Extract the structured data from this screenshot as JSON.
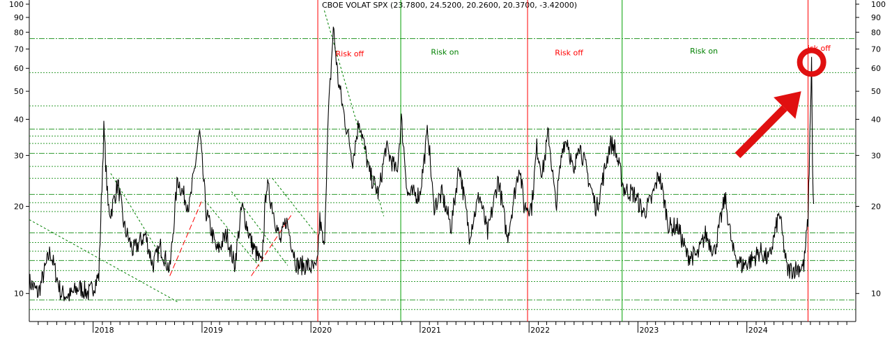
{
  "chart_data": {
    "type": "line",
    "title": "CBOE VOLAT SPX (23.7800, 24.5200, 20.2600, 20.3700, -3.42000)",
    "xlabel": "",
    "ylabel": "",
    "y_scale": "log",
    "ylim": [
      8,
      100
    ],
    "xlim": [
      "2017-06-01",
      "2024-12-31"
    ],
    "grid": true,
    "y_ticks": [
      10,
      20,
      30,
      40,
      50,
      60,
      70,
      80,
      90,
      100
    ],
    "y_tick_labels": [
      "10",
      "20",
      "30",
      "40",
      "50",
      "60",
      "70",
      "80",
      "90",
      "100"
    ],
    "x_ticks": [
      "2018-01-01",
      "2019-01-01",
      "2020-01-01",
      "2021-01-01",
      "2022-01-01",
      "2023-01-01",
      "2024-01-01"
    ],
    "x_tick_labels": [
      "2018",
      "2019",
      "2020",
      "2021",
      "2022",
      "2023",
      "2024"
    ],
    "horizontal_levels": [
      8.8,
      9.5,
      11,
      12,
      13,
      14,
      15,
      16.2,
      19.2,
      20.6,
      22,
      25,
      27.5,
      30.5,
      33,
      35,
      37,
      44.5,
      58,
      76
    ],
    "series": [
      {
        "color": "#000000",
        "points": [
          [
            "2017-06-01",
            11
          ],
          [
            "2017-07-01",
            10
          ],
          [
            "2017-08-10",
            14
          ],
          [
            "2017-09-15",
            10
          ],
          [
            "2017-10-15",
            9.8
          ],
          [
            "2017-11-15",
            10.5
          ],
          [
            "2017-12-20",
            10
          ],
          [
            "2018-01-20",
            11.5
          ],
          [
            "2018-02-06",
            37
          ],
          [
            "2018-02-20",
            20
          ],
          [
            "2018-03-01",
            19
          ],
          [
            "2018-03-25",
            24
          ],
          [
            "2018-04-15",
            17
          ],
          [
            "2018-05-15",
            14
          ],
          [
            "2018-06-25",
            16
          ],
          [
            "2018-07-20",
            12.5
          ],
          [
            "2018-08-15",
            14.5
          ],
          [
            "2018-09-15",
            12
          ],
          [
            "2018-10-11",
            25
          ],
          [
            "2018-10-30",
            22
          ],
          [
            "2018-11-20",
            20
          ],
          [
            "2018-12-24",
            36
          ],
          [
            "2019-01-15",
            19
          ],
          [
            "2019-02-20",
            14
          ],
          [
            "2019-03-25",
            16
          ],
          [
            "2019-04-20",
            12.5
          ],
          [
            "2019-05-15",
            20
          ],
          [
            "2019-06-15",
            15
          ],
          [
            "2019-07-20",
            12.5
          ],
          [
            "2019-08-05",
            24
          ],
          [
            "2019-08-25",
            20
          ],
          [
            "2019-09-20",
            15
          ],
          [
            "2019-10-10",
            18
          ],
          [
            "2019-11-15",
            12.5
          ],
          [
            "2019-12-20",
            12.5
          ],
          [
            "2020-01-20",
            12
          ],
          [
            "2020-01-31",
            18
          ],
          [
            "2020-02-14",
            14
          ],
          [
            "2020-02-28",
            40
          ],
          [
            "2020-03-16",
            83
          ],
          [
            "2020-04-01",
            55
          ],
          [
            "2020-04-20",
            42
          ],
          [
            "2020-05-20",
            29
          ],
          [
            "2020-06-11",
            40
          ],
          [
            "2020-07-15",
            26
          ],
          [
            "2020-08-15",
            22
          ],
          [
            "2020-09-08",
            32
          ],
          [
            "2020-10-15",
            26
          ],
          [
            "2020-10-30",
            40
          ],
          [
            "2020-11-20",
            22
          ],
          [
            "2020-12-31",
            22
          ],
          [
            "2021-01-27",
            37
          ],
          [
            "2021-02-15",
            20
          ],
          [
            "2021-03-15",
            22
          ],
          [
            "2021-04-15",
            17
          ],
          [
            "2021-05-12",
            28
          ],
          [
            "2021-06-15",
            16
          ],
          [
            "2021-07-19",
            22
          ],
          [
            "2021-08-15",
            16
          ],
          [
            "2021-09-20",
            25
          ],
          [
            "2021-10-20",
            15.5
          ],
          [
            "2021-11-30",
            28
          ],
          [
            "2021-12-15",
            20
          ],
          [
            "2022-01-10",
            20
          ],
          [
            "2022-01-27",
            32
          ],
          [
            "2022-02-15",
            26
          ],
          [
            "2022-03-07",
            36
          ],
          [
            "2022-04-01",
            20
          ],
          [
            "2022-04-25",
            33
          ],
          [
            "2022-05-10",
            34
          ],
          [
            "2022-06-01",
            25
          ],
          [
            "2022-06-15",
            34
          ],
          [
            "2022-07-15",
            26
          ],
          [
            "2022-08-15",
            19.5
          ],
          [
            "2022-09-30",
            33
          ],
          [
            "2022-10-15",
            32
          ],
          [
            "2022-11-15",
            23
          ],
          [
            "2022-12-20",
            22
          ],
          [
            "2023-01-20",
            19
          ],
          [
            "2023-02-15",
            21
          ],
          [
            "2023-03-13",
            26
          ],
          [
            "2023-04-15",
            17
          ],
          [
            "2023-05-15",
            17
          ],
          [
            "2023-06-15",
            13.5
          ],
          [
            "2023-07-20",
            13.5
          ],
          [
            "2023-08-15",
            16
          ],
          [
            "2023-09-15",
            14
          ],
          [
            "2023-10-20",
            21.5
          ],
          [
            "2023-11-15",
            14
          ],
          [
            "2023-12-15",
            12.5
          ],
          [
            "2024-01-15",
            13
          ],
          [
            "2024-02-15",
            14
          ],
          [
            "2024-03-15",
            13
          ],
          [
            "2024-04-19",
            19
          ],
          [
            "2024-05-15",
            12
          ],
          [
            "2024-06-15",
            12.2
          ],
          [
            "2024-07-10",
            12.5
          ],
          [
            "2024-07-24",
            18
          ],
          [
            "2024-08-05",
            65
          ],
          [
            "2024-08-08",
            27
          ],
          [
            "2024-08-12",
            20.4
          ]
        ]
      }
    ],
    "vertical_lines": [
      {
        "x": "2020-01-24",
        "color": "#ff0000"
      },
      {
        "x": "2020-10-28",
        "color": "#00a000"
      },
      {
        "x": "2021-12-27",
        "color": "#ff0000"
      },
      {
        "x": "2022-11-09",
        "color": "#00a000"
      },
      {
        "x": "2024-07-24",
        "color": "#ff0000"
      }
    ],
    "annotations": [
      {
        "text": "Risk off",
        "x": "2020-05-10",
        "y": 66,
        "color": "#ff0000"
      },
      {
        "text": "Risk on",
        "x": "2021-03-25",
        "y": 67,
        "color": "#008000"
      },
      {
        "text": "Risk off",
        "x": "2022-05-15",
        "y": 66.5,
        "color": "#ff0000"
      },
      {
        "text": "Risk on",
        "x": "2023-08-10",
        "y": 67.5,
        "color": "#008000"
      },
      {
        "text": "isk off",
        "x": "2024-08-30",
        "y": 69,
        "color": "#ff0000"
      }
    ],
    "trend_lines": [
      {
        "from": [
          "2017-06-01",
          18
        ],
        "to": [
          "2018-10-15",
          9.3
        ],
        "color": "#008000"
      },
      {
        "from": [
          "2018-03-01",
          26
        ],
        "to": [
          "2018-09-15",
          12
        ],
        "color": "#008000"
      },
      {
        "from": [
          "2019-01-10",
          21
        ],
        "to": [
          "2019-07-15",
          12.3
        ],
        "color": "#008000"
      },
      {
        "from": [
          "2019-04-10",
          22.5
        ],
        "to": [
          "2019-10-15",
          12.5
        ],
        "color": "#008000"
      },
      {
        "from": [
          "2019-08-25",
          25
        ],
        "to": [
          "2020-01-20",
          16
        ],
        "color": "#008000"
      },
      {
        "from": [
          "2020-02-15",
          95
        ],
        "to": [
          "2020-09-01",
          18.5
        ],
        "color": "#008000"
      },
      {
        "from": [
          "2018-09-15",
          11.5
        ],
        "to": [
          "2019-01-01",
          21
        ],
        "color": "#ff0000"
      },
      {
        "from": [
          "2019-06-15",
          11.5
        ],
        "to": [
          "2019-11-01",
          19
        ],
        "color": "#ff0000"
      }
    ],
    "highlight": {
      "circle_at": [
        "2024-08-05",
        63
      ],
      "arrow_from": [
        "2023-12-01",
        30
      ],
      "arrow_to": [
        "2024-07-01",
        50
      ],
      "color": "#e01010"
    }
  }
}
